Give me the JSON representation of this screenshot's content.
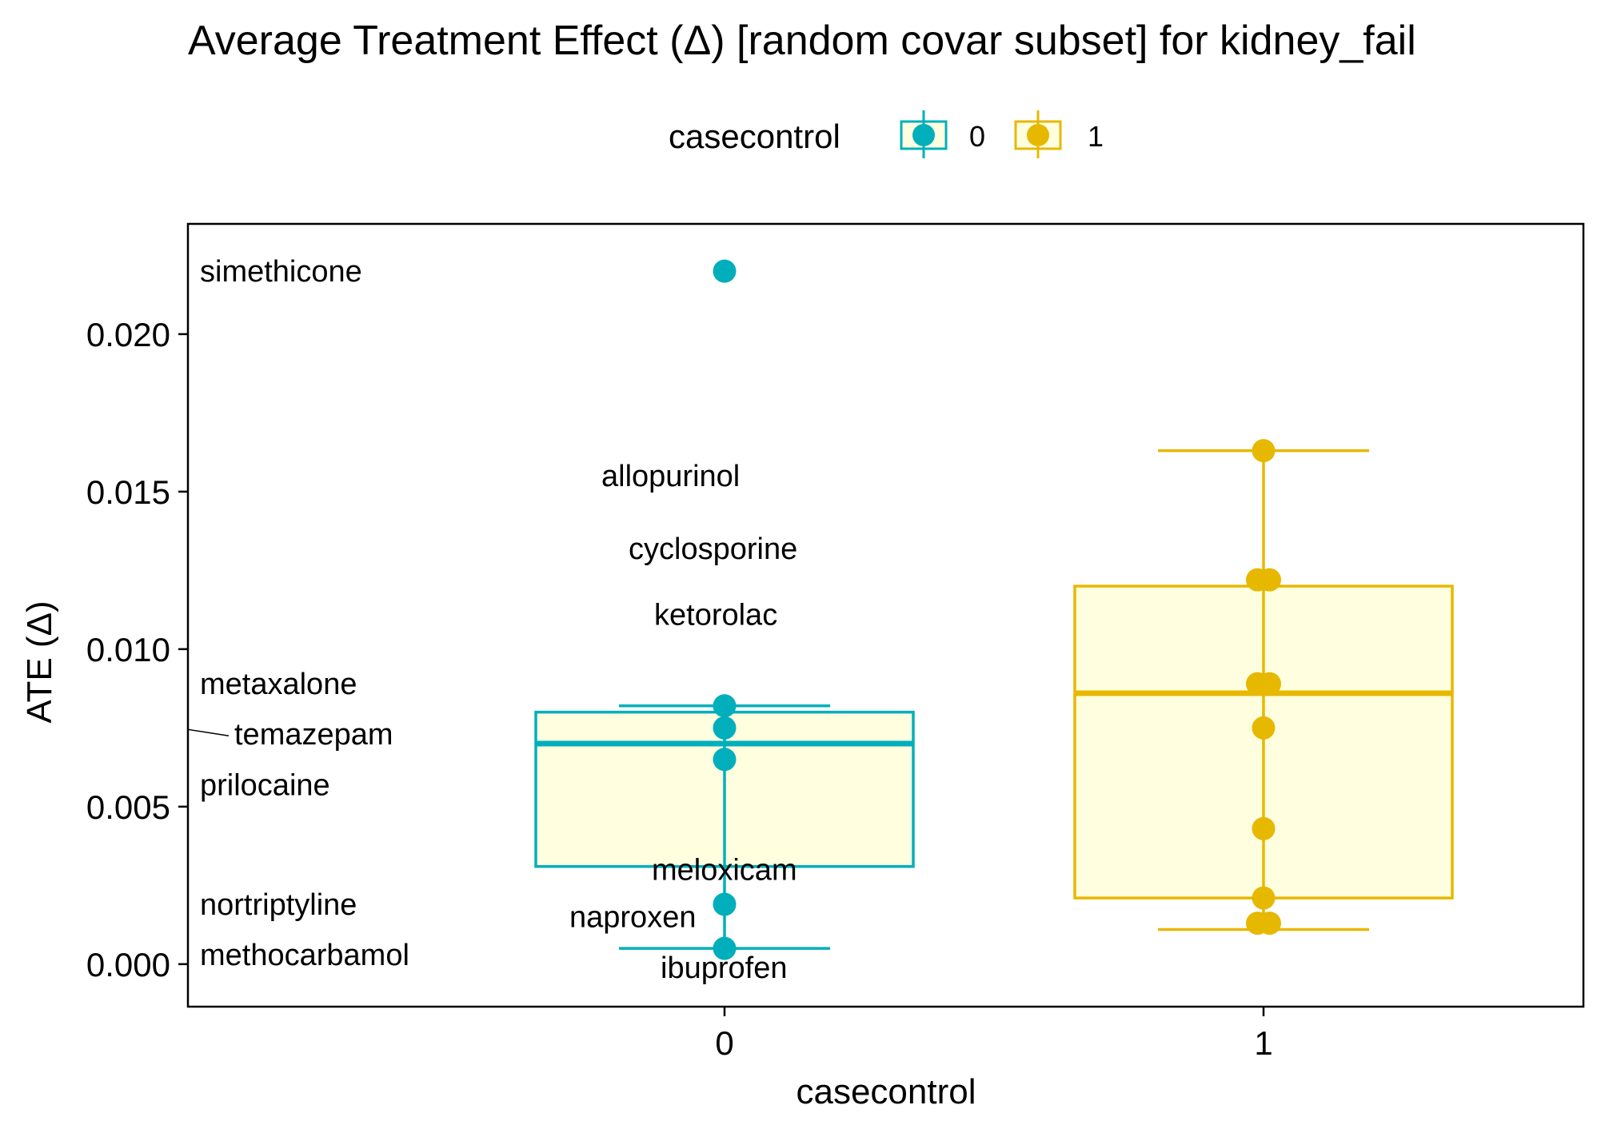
{
  "chart_data": {
    "type": "boxplot",
    "title": "Average Treatment Effect (Δ)  [random covar subset] for kidney_fail",
    "xlabel": "casecontrol",
    "ylabel": "ATE (Δ)",
    "ylim": [
      -0.00135,
      0.0235
    ],
    "yticks": [
      0.0,
      0.005,
      0.01,
      0.015,
      0.02
    ],
    "ytick_labels": [
      "0.000",
      "0.005",
      "0.010",
      "0.015",
      "0.020"
    ],
    "categories": [
      "0",
      "1"
    ],
    "legend": {
      "title": "casecontrol",
      "position": "top",
      "entries": [
        "0",
        "1"
      ]
    },
    "grid": false,
    "box_fill": "#ffffe0",
    "series": [
      {
        "name": "0",
        "color": "#00AFBB",
        "box": {
          "whisker_low": 0.0005,
          "q1": 0.0031,
          "median": 0.007,
          "q3": 0.008,
          "whisker_high": 0.0082
        },
        "points": [
          {
            "x": "0",
            "y": 0.022,
            "label": "simethicone"
          },
          {
            "x": "0",
            "y": 0.0082,
            "label": "metaxalone"
          },
          {
            "x": "0",
            "y": 0.0075,
            "label": "temazepam"
          },
          {
            "x": "0",
            "y": 0.0065,
            "label": "prilocaine"
          },
          {
            "x": "0",
            "y": 0.0019,
            "label": "nortriptyline"
          },
          {
            "x": "0",
            "y": 0.0005,
            "label": "methocarbamol"
          }
        ],
        "labels": [
          {
            "text": "simethicone",
            "y": 0.022
          },
          {
            "text": "allopurinol",
            "y": 0.0155
          },
          {
            "text": "cyclosporine",
            "y": 0.0132
          },
          {
            "text": "ketorolac",
            "y": 0.0111
          },
          {
            "text": "metaxalone",
            "y": 0.0089
          },
          {
            "text": "temazepam",
            "y": 0.0073
          },
          {
            "text": "prilocaine",
            "y": 0.0057
          },
          {
            "text": "meloxicam",
            "y": 0.003
          },
          {
            "text": "nortriptyline",
            "y": 0.0019
          },
          {
            "text": "naproxen",
            "y": 0.0015
          },
          {
            "text": "methocarbamol",
            "y": 0.0003
          },
          {
            "text": "ibuprofen",
            "y": -0.0001
          }
        ]
      },
      {
        "name": "1",
        "color": "#E7B800",
        "box": {
          "whisker_low": 0.0011,
          "q1": 0.0021,
          "median": 0.0086,
          "q3": 0.012,
          "whisker_high": 0.0163
        },
        "points": [
          {
            "x": "1",
            "y": 0.0163
          },
          {
            "x": "1",
            "y": 0.0122
          },
          {
            "x": "1",
            "y": 0.0122
          },
          {
            "x": "1",
            "y": 0.0089
          },
          {
            "x": "1",
            "y": 0.0089
          },
          {
            "x": "1",
            "y": 0.0075
          },
          {
            "x": "1",
            "y": 0.0043
          },
          {
            "x": "1",
            "y": 0.0021
          },
          {
            "x": "1",
            "y": 0.0013
          },
          {
            "x": "1",
            "y": 0.0013
          }
        ]
      }
    ]
  }
}
